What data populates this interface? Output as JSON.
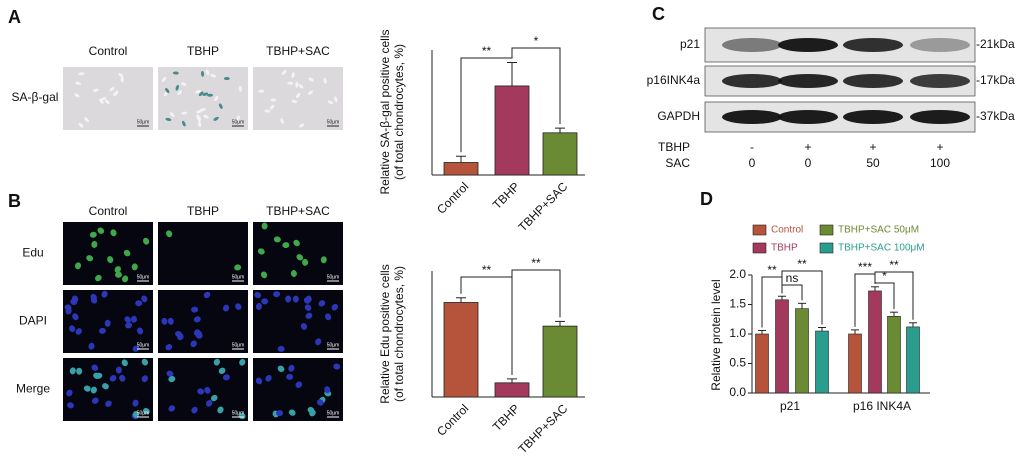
{
  "panel_a": {
    "label": "A",
    "columns": [
      "Control",
      "TBHP",
      "TBHP+SAC"
    ],
    "row_label": "SA-β-gal",
    "scale_bar": "50μm"
  },
  "panel_b": {
    "label": "B",
    "columns": [
      "Control",
      "TBHP",
      "TBHP+SAC"
    ],
    "rows": [
      "Edu",
      "DAPI",
      "Merge"
    ],
    "scale_bar": "50μm"
  },
  "panel_c": {
    "label": "C",
    "bands": [
      {
        "name": "p21",
        "size": "-21kDa"
      },
      {
        "name": "p16INK4a",
        "size": "-17kDa"
      },
      {
        "name": "GAPDH",
        "size": "-37kDa"
      }
    ],
    "treatments": [
      {
        "name": "TBHP",
        "values": [
          "-",
          "+",
          "+",
          "+"
        ]
      },
      {
        "name": "SAC",
        "values": [
          "0",
          "0",
          "50",
          "100"
        ]
      }
    ]
  },
  "panel_d": {
    "label": "D"
  },
  "chart_data": [
    {
      "type": "bar",
      "ylabel": [
        "Relative SA-β-gal positive cells",
        "(of total chondrocytes, %)"
      ],
      "categories": [
        "Control",
        "TBHP",
        "TBHP+SAC"
      ],
      "values": [
        8,
        57,
        27
      ],
      "errors": [
        4,
        15,
        3
      ],
      "colors": [
        "#b5543a",
        "#a33a5e",
        "#6b8a34"
      ],
      "ylim": [
        0,
        80
      ],
      "annotations": [
        "**",
        "*"
      ]
    },
    {
      "type": "bar",
      "ylabel": [
        "Relative Edu positive cells",
        "(of total chondrocytes, %)"
      ],
      "categories": [
        "Control",
        "TBHP",
        "TBHP+SAC"
      ],
      "values": [
        60,
        9,
        45
      ],
      "errors": [
        3,
        2.5,
        3
      ],
      "colors": [
        "#b5543a",
        "#a33a5e",
        "#6b8a34"
      ],
      "ylim": [
        0,
        80
      ],
      "annotations": [
        "**",
        "**"
      ]
    },
    {
      "type": "grouped-bar",
      "ylabel": "Relative protein level",
      "categories": [
        "p21",
        "p16 INK4A"
      ],
      "series": [
        {
          "name": "Control",
          "color": "#b5543a",
          "values": [
            1.0,
            1.0
          ],
          "errors": [
            0.06,
            0.07
          ]
        },
        {
          "name": "TBHP",
          "color": "#a33a5e",
          "values": [
            1.58,
            1.73
          ],
          "errors": [
            0.06,
            0.07
          ]
        },
        {
          "name": "TBHP+SAC 50μM",
          "color": "#6b8a34",
          "values": [
            1.43,
            1.3
          ],
          "errors": [
            0.09,
            0.07
          ]
        },
        {
          "name": "TBHP+SAC 100μM",
          "color": "#2a9d8f",
          "values": [
            1.05,
            1.12
          ],
          "errors": [
            0.06,
            0.07
          ]
        }
      ],
      "ylim": [
        0,
        2.0
      ],
      "yticks": [
        {
          "value": 0,
          "label": "0.0"
        },
        0.5,
        {
          "value": 1,
          "label": "1.0"
        },
        1.5,
        {
          "value": 2,
          "label": "2.0"
        }
      ],
      "annotations": [
        [
          "**",
          "ns",
          "**"
        ],
        [
          "***",
          "*",
          "**"
        ]
      ]
    }
  ]
}
